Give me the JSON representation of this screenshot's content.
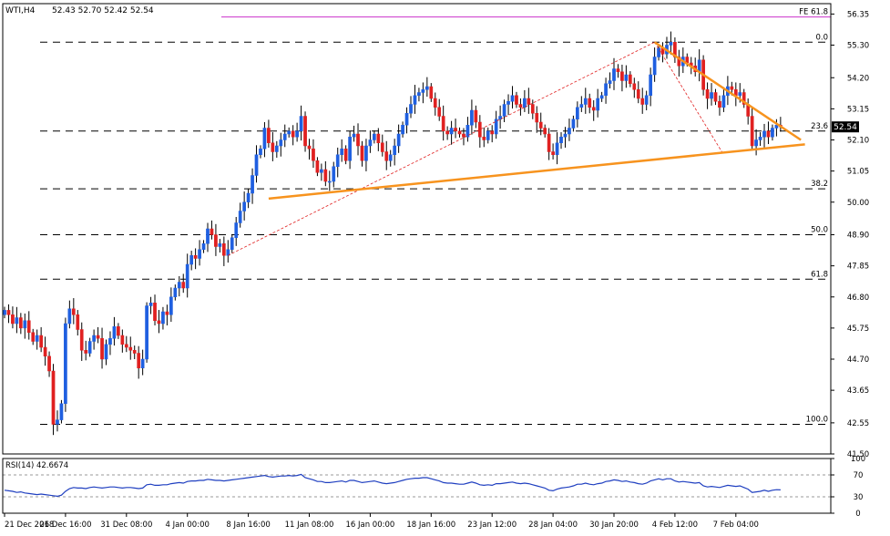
{
  "header": {
    "title": "WTI,H4",
    "ohlc": "52.43 52.70 52.42 52.54"
  },
  "price_tag": "52.54",
  "chart_data": [
    {
      "type": "candlestick",
      "title": "WTI,H4",
      "ylim": [
        41.5,
        56.7
      ],
      "y_ticks": [
        "56.35",
        "55.30",
        "54.20",
        "53.15",
        "52.10",
        "51.05",
        "50.00",
        "48.90",
        "47.85",
        "46.80",
        "45.75",
        "44.70",
        "43.65",
        "42.55",
        "41.50"
      ],
      "x_ticks": [
        "21 Dec 2018",
        "26 Dec 16:00",
        "31 Dec 08:00",
        "4 Jan 00:00",
        "8 Jan 16:00",
        "11 Jan 08:00",
        "16 Jan 00:00",
        "18 Jan 16:00",
        "23 Jan 12:00",
        "28 Jan 04:00",
        "30 Jan 20:00",
        "4 Feb 12:00",
        "7 Feb 04:00"
      ],
      "x_tick_index": [
        0,
        15,
        30,
        45,
        60,
        75,
        90,
        105,
        120,
        135,
        150,
        165,
        180
      ],
      "last_close": 52.54,
      "fib_levels": [
        {
          "label": "FE 61.8",
          "value": 56.25,
          "color": "#cc33cc"
        },
        {
          "label": "0.0",
          "value": 55.4
        },
        {
          "label": "23.6",
          "value": 52.4
        },
        {
          "label": "38.2",
          "value": 50.45
        },
        {
          "label": "50.0",
          "value": 48.9
        },
        {
          "label": "61.8",
          "value": 47.4
        },
        {
          "label": "100.0",
          "value": 42.5
        }
      ],
      "trendlines": [
        {
          "name": "support",
          "x": [
            65,
            197
          ],
          "y": [
            50.12,
            51.95
          ],
          "color": "#f7931e"
        },
        {
          "name": "resistance",
          "x": [
            160,
            196
          ],
          "y": [
            55.4,
            52.1
          ],
          "color": "#f7931e"
        }
      ],
      "zigzag": {
        "x": [
          55,
          160,
          177
        ],
        "y": [
          48.2,
          55.4,
          51.6
        ]
      },
      "candles_close": [
        46.35,
        46.2,
        45.9,
        46.1,
        45.75,
        46.0,
        45.6,
        45.3,
        45.5,
        45.1,
        44.8,
        44.3,
        42.5,
        42.65,
        43.2,
        45.9,
        46.4,
        46.2,
        45.7,
        45.0,
        44.9,
        45.3,
        45.5,
        45.4,
        44.7,
        45.2,
        45.4,
        45.8,
        45.5,
        45.2,
        45.1,
        45.0,
        44.9,
        44.4,
        44.7,
        46.5,
        46.6,
        46.0,
        45.9,
        46.3,
        46.2,
        46.8,
        47.1,
        47.3,
        47.1,
        47.9,
        48.2,
        48.1,
        48.4,
        48.6,
        49.1,
        48.9,
        48.5,
        48.6,
        48.2,
        48.4,
        48.8,
        49.3,
        49.7,
        50.0,
        50.3,
        50.9,
        51.6,
        51.8,
        52.5,
        52.0,
        51.7,
        51.9,
        52.1,
        52.3,
        52.4,
        52.2,
        52.4,
        52.9,
        51.9,
        51.8,
        51.4,
        51.0,
        51.1,
        50.7,
        50.7,
        51.2,
        51.6,
        51.8,
        51.4,
        52.2,
        52.3,
        51.9,
        51.4,
        51.9,
        52.1,
        52.3,
        52.0,
        51.7,
        51.4,
        51.6,
        51.9,
        52.3,
        52.6,
        53.0,
        53.3,
        53.6,
        53.7,
        53.8,
        53.9,
        53.5,
        53.2,
        52.9,
        52.4,
        52.3,
        52.5,
        52.4,
        52.3,
        52.2,
        52.6,
        53.1,
        52.7,
        52.2,
        52.1,
        52.4,
        52.3,
        52.8,
        52.9,
        53.3,
        53.4,
        53.6,
        53.3,
        53.2,
        53.5,
        53.3,
        53.0,
        52.7,
        52.5,
        52.3,
        51.7,
        51.6,
        52.0,
        52.2,
        52.3,
        52.5,
        52.8,
        53.2,
        53.3,
        53.5,
        53.2,
        53.1,
        53.5,
        53.6,
        54.0,
        54.1,
        54.5,
        54.4,
        54.1,
        54.3,
        54.0,
        53.8,
        53.5,
        53.3,
        53.6,
        54.3,
        54.9,
        55.2,
        55.0,
        55.3,
        55.4,
        54.9,
        54.6,
        54.9,
        54.7,
        54.6,
        54.4,
        54.8,
        53.8,
        53.5,
        53.7,
        53.4,
        53.2,
        53.6,
        53.9,
        53.8,
        53.6,
        53.7,
        53.3,
        52.9,
        51.9,
        52.1,
        52.2,
        52.4,
        52.2,
        52.5,
        52.6,
        52.54
      ]
    },
    {
      "type": "line",
      "title": "RSI(14) 42.6674",
      "ylim": [
        0,
        100
      ],
      "y_ticks": [
        "100",
        "70",
        "30",
        "0"
      ],
      "levels": [
        70,
        30
      ],
      "values": [
        42,
        41,
        40,
        38,
        39,
        37,
        36,
        35,
        34,
        35,
        34,
        33,
        32,
        31,
        33,
        40,
        45,
        47,
        46,
        46,
        45,
        47,
        48,
        47,
        46,
        47,
        48,
        48,
        47,
        46,
        47,
        47,
        46,
        45,
        46,
        52,
        53,
        51,
        51,
        52,
        52,
        54,
        55,
        56,
        55,
        58,
        59,
        59,
        60,
        60,
        62,
        61,
        60,
        60,
        59,
        60,
        61,
        62,
        63,
        64,
        65,
        66,
        67,
        68,
        69,
        67,
        66,
        67,
        68,
        68,
        69,
        68,
        69,
        71,
        65,
        63,
        61,
        58,
        58,
        56,
        56,
        57,
        58,
        59,
        57,
        60,
        60,
        58,
        56,
        57,
        58,
        59,
        57,
        55,
        54,
        55,
        56,
        58,
        60,
        62,
        63,
        64,
        64,
        65,
        65,
        63,
        61,
        59,
        56,
        55,
        55,
        54,
        53,
        53,
        55,
        57,
        55,
        52,
        51,
        52,
        51,
        54,
        54,
        55,
        56,
        57,
        55,
        54,
        55,
        54,
        52,
        50,
        48,
        46,
        42,
        41,
        44,
        46,
        47,
        48,
        50,
        53,
        53,
        55,
        53,
        52,
        54,
        55,
        58,
        59,
        61,
        60,
        58,
        59,
        57,
        56,
        54,
        53,
        55,
        59,
        61,
        63,
        61,
        63,
        63,
        59,
        57,
        58,
        57,
        56,
        55,
        56,
        50,
        48,
        49,
        48,
        47,
        49,
        51,
        50,
        49,
        50,
        47,
        44,
        38,
        39,
        40,
        42,
        40,
        42,
        43,
        42.7
      ]
    }
  ]
}
